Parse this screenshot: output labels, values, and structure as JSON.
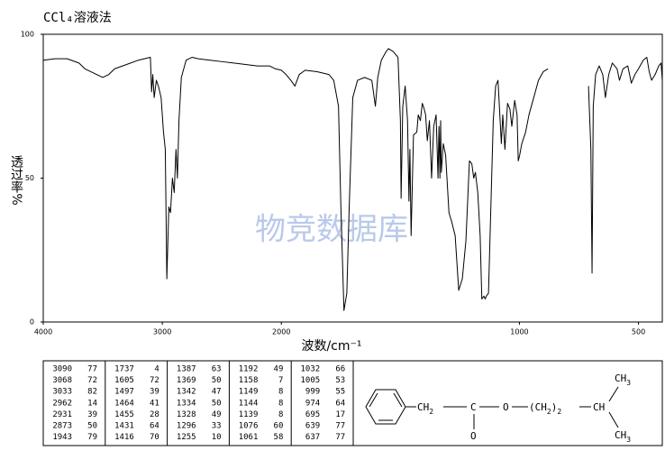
{
  "chart_data": {
    "type": "line",
    "title": "CCl₄溶液法",
    "xlabel": "波数/cm⁻¹",
    "ylabel": "透过率%",
    "watermark": "物竞数据库",
    "color": "#000000",
    "xlim": [
      4000,
      400
    ],
    "x_scale_break": 2000,
    "x_scale_ratio": 2,
    "xticks": [
      4000,
      3000,
      2000,
      1000,
      500
    ],
    "ylim": [
      0,
      100
    ],
    "yticks": [
      0,
      50,
      100
    ],
    "x": [
      4000,
      3900,
      3800,
      3700,
      3650,
      3550,
      3500,
      3450,
      3400,
      3300,
      3200,
      3150,
      3100,
      3090,
      3080,
      3068,
      3050,
      3033,
      3010,
      2990,
      2975,
      2962,
      2945,
      2931,
      2915,
      2900,
      2885,
      2873,
      2860,
      2840,
      2800,
      2750,
      2700,
      2600,
      2500,
      2400,
      2300,
      2200,
      2100,
      2050,
      2000,
      1980,
      1960,
      1943,
      1925,
      1900,
      1850,
      1800,
      1780,
      1760,
      1750,
      1737,
      1725,
      1715,
      1700,
      1680,
      1650,
      1620,
      1605,
      1595,
      1580,
      1560,
      1550,
      1530,
      1510,
      1500,
      1497,
      1490,
      1480,
      1470,
      1464,
      1460,
      1455,
      1445,
      1431,
      1425,
      1416,
      1408,
      1400,
      1394,
      1387,
      1378,
      1369,
      1360,
      1350,
      1342,
      1338,
      1334,
      1331,
      1328,
      1320,
      1310,
      1296,
      1285,
      1270,
      1255,
      1240,
      1225,
      1210,
      1200,
      1192,
      1185,
      1175,
      1165,
      1158,
      1149,
      1144,
      1139,
      1130,
      1120,
      1110,
      1100,
      1090,
      1076,
      1070,
      1061,
      1050,
      1040,
      1032,
      1020,
      1010,
      1005,
      999,
      990,
      974,
      960,
      940,
      920,
      900,
      880,
      800,
      710,
      700,
      695,
      690,
      680,
      665,
      650,
      639,
      625,
      610,
      590,
      580,
      565,
      545,
      530,
      515,
      500,
      480,
      465,
      455,
      445,
      430,
      415,
      405,
      400
    ],
    "values": [
      91,
      91.5,
      91.5,
      90,
      88,
      86,
      85,
      86,
      88,
      89.5,
      91,
      91.5,
      92,
      80,
      86,
      78,
      84,
      82,
      78,
      66,
      60,
      15,
      40,
      38,
      50,
      45,
      60,
      50,
      70,
      85,
      91,
      92,
      91.5,
      91,
      90.5,
      90,
      89.5,
      89,
      89,
      88,
      87.5,
      86,
      84,
      82,
      86,
      87.5,
      87,
      86,
      84,
      75,
      40,
      4,
      10,
      40,
      78,
      84,
      85,
      84,
      75,
      85,
      91,
      94,
      95,
      94,
      92,
      70,
      43,
      75,
      82,
      70,
      42,
      60,
      30,
      65,
      66,
      72,
      70,
      76,
      74,
      72,
      63,
      70,
      50,
      68,
      72,
      50,
      68,
      50,
      70,
      52,
      62,
      58,
      38,
      35,
      30,
      11,
      15,
      28,
      56,
      55,
      50,
      52,
      45,
      30,
      8,
      9,
      8,
      9,
      10,
      40,
      70,
      82,
      84,
      62,
      72,
      60,
      76,
      74,
      68,
      77,
      72,
      56,
      58,
      62,
      66,
      72,
      78,
      84,
      87,
      88,
      null,
      82,
      60,
      17,
      75,
      86,
      89,
      86,
      78,
      86,
      90,
      88,
      84,
      88,
      89,
      83,
      86,
      88,
      91,
      92,
      87,
      84,
      86,
      89,
      90,
      84
    ]
  },
  "peak_table": {
    "columns": [
      [
        [
          3090,
          77
        ],
        [
          3068,
          72
        ],
        [
          3033,
          82
        ],
        [
          2962,
          14
        ],
        [
          2931,
          39
        ],
        [
          2873,
          50
        ],
        [
          1943,
          79
        ]
      ],
      [
        [
          1737,
          4
        ],
        [
          1605,
          72
        ],
        [
          1497,
          39
        ],
        [
          1464,
          41
        ],
        [
          1455,
          28
        ],
        [
          1431,
          64
        ],
        [
          1416,
          70
        ]
      ],
      [
        [
          1387,
          63
        ],
        [
          1369,
          50
        ],
        [
          1342,
          47
        ],
        [
          1334,
          50
        ],
        [
          1328,
          49
        ],
        [
          1296,
          33
        ],
        [
          1255,
          10
        ]
      ],
      [
        [
          1192,
          49
        ],
        [
          1158,
          7
        ],
        [
          1149,
          8
        ],
        [
          1144,
          8
        ],
        [
          1139,
          8
        ],
        [
          1076,
          60
        ],
        [
          1061,
          58
        ]
      ],
      [
        [
          1032,
          66
        ],
        [
          1005,
          53
        ],
        [
          999,
          55
        ],
        [
          974,
          64
        ],
        [
          695,
          17
        ],
        [
          639,
          77
        ],
        [
          637,
          77
        ]
      ]
    ]
  },
  "structure": {
    "labels": [
      [
        "CH",
        "2"
      ],
      [
        "C"
      ],
      [
        "O"
      ],
      [
        "(CH",
        "2",
        ")",
        "2"
      ],
      [
        "CH"
      ],
      [
        "CH",
        "3"
      ],
      [
        "CH",
        "3"
      ],
      [
        "O"
      ]
    ]
  }
}
